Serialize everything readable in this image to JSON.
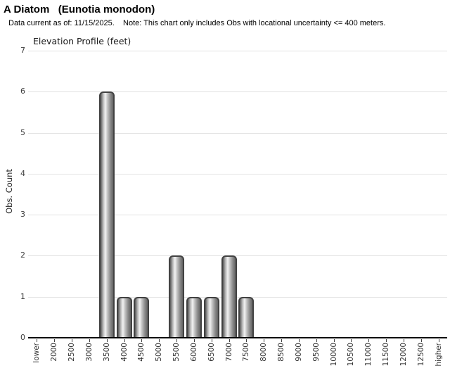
{
  "header": {
    "title": "A Diatom   (Eunotia monodon)",
    "subtitle": "Data current as of: 11/15/2025.    Note: This chart only includes Obs with locational uncertainty <= 400 meters."
  },
  "chart_data": {
    "type": "bar",
    "title": "Elevation Profile (feet)",
    "xlabel": "",
    "ylabel": "Obs. Count",
    "categories": [
      "lower",
      "2000",
      "2500",
      "3000",
      "3500",
      "4000",
      "4500",
      "5000",
      "5500",
      "6000",
      "6500",
      "7000",
      "7500",
      "8000",
      "8500",
      "9000",
      "9500",
      "10000",
      "10500",
      "11000",
      "11500",
      "12000",
      "12500",
      "higher"
    ],
    "values": [
      0,
      0,
      0,
      0,
      6,
      1,
      1,
      0,
      2,
      1,
      1,
      2,
      1,
      0,
      0,
      0,
      0,
      0,
      0,
      0,
      0,
      0,
      0,
      0
    ],
    "ylim": [
      0,
      7
    ],
    "yticks": [
      0,
      1,
      2,
      3,
      4,
      5,
      6,
      7
    ],
    "grid": true,
    "legend_position": "none",
    "colors": {
      "gridline": "#e2e2e2",
      "axis_line": "#060606",
      "tick_label": "#333333",
      "bar_border": "#424242",
      "bar_gradient": [
        "#585858",
        "#bdbdbd",
        "#f2f2f2",
        "#c2c2c2",
        "#8b8b8b",
        "#636363"
      ]
    }
  }
}
